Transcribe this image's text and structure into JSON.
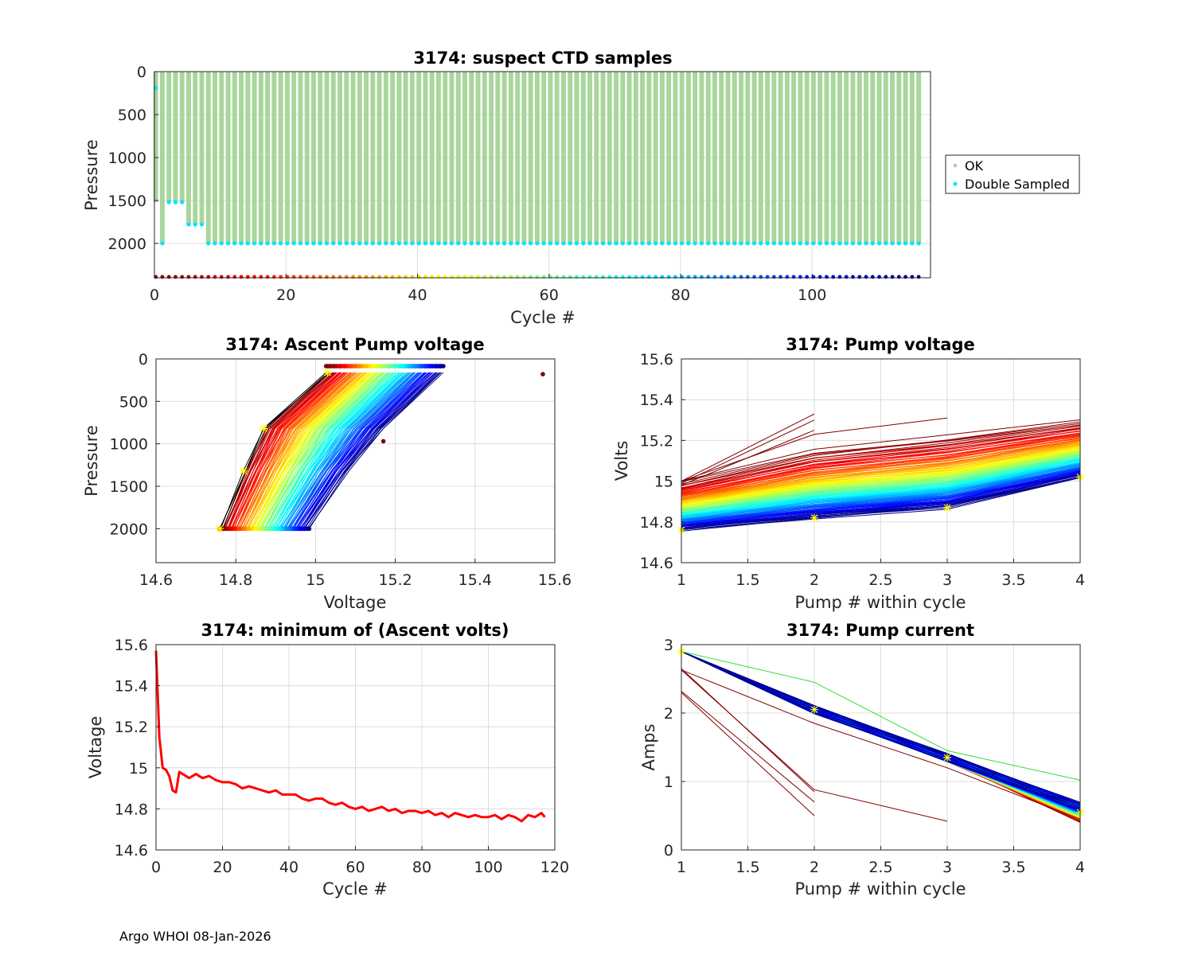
{
  "footer": "Argo WHOI 08-Jan-2026",
  "colors": {
    "ok": "#c7c7c7",
    "double": "#00e6ff",
    "marker": "#ffff00",
    "bars": "#a9d69c"
  },
  "chart_data": [
    {
      "id": "p1",
      "type": "scatter",
      "title": "3174: suspect CTD samples",
      "xlabel": "Cycle #",
      "ylabel": "Pressure",
      "xlim": [
        0,
        118
      ],
      "ylim": [
        0,
        2400
      ],
      "y_reversed": true,
      "xticks": [
        0,
        20,
        40,
        60,
        80,
        100
      ],
      "yticks": [
        0,
        500,
        1000,
        1500,
        2000
      ],
      "legend": [
        "OK",
        "Double Sampled"
      ],
      "legend_position": "outside-right",
      "n_cycles": 117,
      "profile_max_pressure": 2000,
      "double_sampled_depths": [
        {
          "cycles": [
            0
          ],
          "pressure": 190
        },
        {
          "cycles": [
            2,
            3,
            4
          ],
          "pressure": 1520
        },
        {
          "cycles": [
            5,
            6,
            7
          ],
          "pressure": 1780
        },
        {
          "cycles": "8-117",
          "pressure": 2000
        }
      ],
      "cycle_marker_pressure": 2390
    },
    {
      "id": "p2",
      "type": "line",
      "title": "3174: Ascent Pump voltage",
      "xlabel": "Voltage",
      "ylabel": "Pressure",
      "xlim": [
        14.6,
        15.6
      ],
      "ylim": [
        0,
        2400
      ],
      "y_reversed": true,
      "xticks": [
        14.6,
        14.8,
        15,
        15.2,
        15.4,
        15.6
      ],
      "yticks": [
        0,
        500,
        1000,
        1500,
        2000
      ],
      "pressure_levels": [
        2000,
        1320,
        820,
        160
      ],
      "voltage_at_levels_first_cycle": [
        14.76,
        14.82,
        14.87,
        15.03
      ],
      "voltage_at_levels_last_cycle": [
        14.98,
        15.08,
        15.17,
        15.32
      ],
      "outliers": [
        {
          "voltage": 15.57,
          "pressure": 180
        },
        {
          "voltage": 15.17,
          "pressure": 970
        }
      ]
    },
    {
      "id": "p3",
      "type": "line",
      "title": "3174: Pump voltage",
      "xlabel": "Pump # within cycle",
      "ylabel": "Volts",
      "xlim": [
        1,
        4
      ],
      "ylim": [
        14.6,
        15.6
      ],
      "xticks": [
        1,
        1.5,
        2,
        2.5,
        3,
        3.5,
        4
      ],
      "yticks": [
        14.6,
        14.8,
        15,
        15.2,
        15.4,
        15.6
      ],
      "first_cycle_volts": [
        15.0,
        15.15,
        15.22,
        15.3
      ],
      "late_cycle_volts": [
        14.76,
        14.82,
        14.87,
        15.02
      ],
      "anomalous_series": [
        {
          "x": [
            1,
            2
          ],
          "y": [
            15.0,
            15.33
          ]
        },
        {
          "x": [
            1,
            2
          ],
          "y": [
            14.99,
            15.3
          ]
        },
        {
          "x": [
            1,
            2
          ],
          "y": [
            14.98,
            15.25
          ]
        },
        {
          "x": [
            1,
            2,
            3
          ],
          "y": [
            15.0,
            15.23,
            15.31
          ]
        }
      ]
    },
    {
      "id": "p4",
      "type": "line",
      "title": "3174: minimum of (Ascent volts)",
      "xlabel": "Cycle #",
      "ylabel": "Voltage",
      "xlim": [
        0,
        120
      ],
      "ylim": [
        14.6,
        15.6
      ],
      "xticks": [
        0,
        20,
        40,
        60,
        80,
        100,
        120
      ],
      "yticks": [
        14.6,
        14.8,
        15,
        15.2,
        15.4,
        15.6
      ],
      "series_color": "#ff0000",
      "x": [
        0,
        1,
        2,
        3,
        4,
        5,
        6,
        7,
        8,
        10,
        12,
        14,
        16,
        18,
        20,
        22,
        24,
        26,
        28,
        30,
        32,
        34,
        36,
        38,
        40,
        42,
        44,
        46,
        48,
        50,
        52,
        54,
        56,
        58,
        60,
        62,
        64,
        66,
        68,
        70,
        72,
        74,
        76,
        78,
        80,
        82,
        84,
        86,
        88,
        90,
        92,
        94,
        96,
        98,
        100,
        102,
        104,
        106,
        108,
        110,
        112,
        114,
        116,
        117
      ],
      "values": [
        15.57,
        15.15,
        15.0,
        14.99,
        14.96,
        14.89,
        14.88,
        14.98,
        14.97,
        14.95,
        14.97,
        14.95,
        14.96,
        14.94,
        14.93,
        14.93,
        14.92,
        14.9,
        14.91,
        14.9,
        14.89,
        14.88,
        14.89,
        14.87,
        14.87,
        14.87,
        14.85,
        14.84,
        14.85,
        14.85,
        14.83,
        14.82,
        14.83,
        14.81,
        14.8,
        14.81,
        14.79,
        14.8,
        14.81,
        14.79,
        14.8,
        14.78,
        14.79,
        14.79,
        14.78,
        14.79,
        14.77,
        14.78,
        14.76,
        14.78,
        14.77,
        14.76,
        14.77,
        14.76,
        14.76,
        14.77,
        14.75,
        14.77,
        14.76,
        14.74,
        14.77,
        14.76,
        14.78,
        14.76
      ]
    },
    {
      "id": "p5",
      "type": "line",
      "title": "3174: Pump current",
      "xlabel": "Pump # within cycle",
      "ylabel": "Amps",
      "xlim": [
        1,
        4
      ],
      "ylim": [
        0,
        3
      ],
      "xticks": [
        1,
        1.5,
        2,
        2.5,
        3,
        3.5,
        4
      ],
      "yticks": [
        0,
        1,
        2,
        3
      ],
      "typical_amps": [
        2.9,
        2.05,
        1.35,
        0.55
      ],
      "anomalous_series": [
        {
          "x": [
            1,
            2
          ],
          "y": [
            2.65,
            0.85
          ]
        },
        {
          "x": [
            1,
            2
          ],
          "y": [
            2.3,
            0.5
          ]
        },
        {
          "x": [
            1,
            2
          ],
          "y": [
            2.32,
            0.7
          ]
        },
        {
          "x": [
            1,
            2,
            3
          ],
          "y": [
            2.63,
            0.88,
            0.42
          ]
        },
        {
          "x": [
            1,
            2,
            3,
            4
          ],
          "y": [
            2.63,
            1.85,
            1.2,
            0.45
          ]
        }
      ],
      "green_series": {
        "x": [
          1,
          2,
          3,
          4
        ],
        "y": [
          2.9,
          2.45,
          1.45,
          1.02
        ]
      }
    }
  ]
}
